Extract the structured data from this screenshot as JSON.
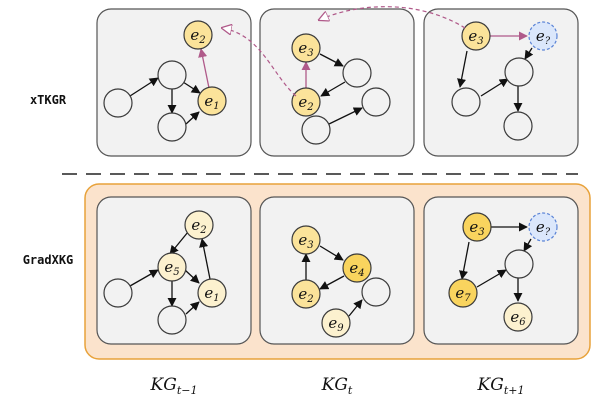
{
  "row_labels": {
    "top": "xTKGR",
    "bottom": "GradXKG"
  },
  "column_labels": [
    {
      "main": "KG",
      "sub": "t−1"
    },
    {
      "main": "KG",
      "sub": "t"
    },
    {
      "main": "KG",
      "sub": "t+1"
    }
  ],
  "nodes": {
    "top": [
      {
        "main": "e",
        "sub": "2"
      },
      {
        "main": "e",
        "sub": "1"
      },
      {
        "main": "e",
        "sub": "3"
      },
      {
        "main": "e",
        "sub": "2"
      },
      {
        "main": "e",
        "sub": "3"
      },
      {
        "main": "e",
        "sub": "?"
      }
    ],
    "bottom": [
      {
        "main": "e",
        "sub": "2"
      },
      {
        "main": "e",
        "sub": "5"
      },
      {
        "main": "e",
        "sub": "1"
      },
      {
        "main": "e",
        "sub": "3"
      },
      {
        "main": "e",
        "sub": "4"
      },
      {
        "main": "e",
        "sub": "2"
      },
      {
        "main": "e",
        "sub": "9"
      },
      {
        "main": "e",
        "sub": "3"
      },
      {
        "main": "e",
        "sub": "?"
      },
      {
        "main": "e",
        "sub": "7"
      },
      {
        "main": "e",
        "sub": "6"
      }
    ]
  },
  "colors": {
    "panel_fill": "#f2f2f2",
    "panel_stroke": "#555555",
    "highlight_box_fill": "#fbe3cc",
    "highlight_box_stroke": "#e8a23a",
    "node_yellow": "#fbe39a",
    "node_yellow_strong": "#f9d45e",
    "node_pale": "#fcf1cf",
    "node_query": "#dbe7fb",
    "query_stroke": "#5b84d6",
    "path_edge": "#b05a8a",
    "dashed_arrow": "#b05a8a"
  }
}
